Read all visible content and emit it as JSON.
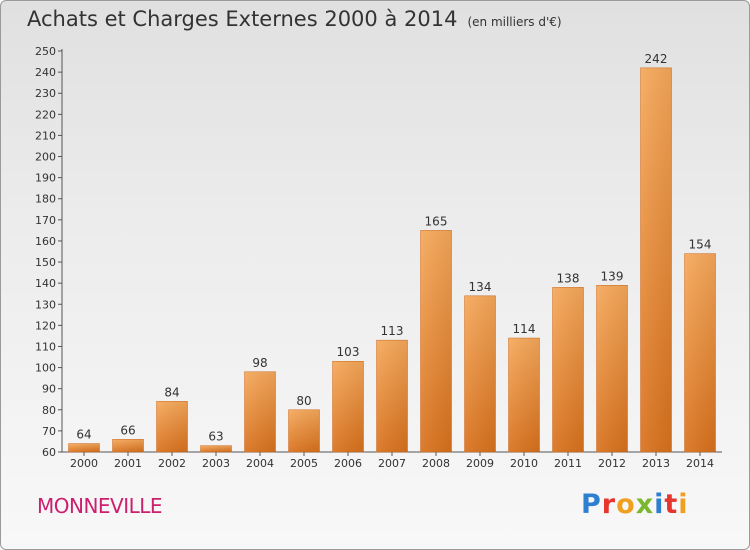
{
  "header": {
    "title": "Achats et Charges Externes 2000 à 2014",
    "unit": "(en milliers d'€)"
  },
  "footer": {
    "town": "MONNEVILLE",
    "logo_letters": [
      "P",
      "r",
      "o",
      "x",
      "i",
      "t",
      "i"
    ],
    "logo_colors": [
      "#2f7fd1",
      "#e5352e",
      "#f0a020",
      "#7ab82f",
      "#2f7fd1",
      "#e5352e",
      "#f0a020"
    ]
  },
  "chart_data": {
    "type": "bar",
    "title": "Achats et Charges Externes 2000 à 2014",
    "categories": [
      "2000",
      "2001",
      "2002",
      "2003",
      "2004",
      "2005",
      "2006",
      "2007",
      "2008",
      "2009",
      "2010",
      "2011",
      "2012",
      "2013",
      "2014"
    ],
    "values": [
      64,
      66,
      84,
      63,
      98,
      80,
      103,
      113,
      165,
      134,
      114,
      138,
      139,
      242,
      154
    ],
    "ylim": [
      60,
      250
    ],
    "ytick_step": 10,
    "xlabel": "",
    "ylabel": "",
    "grid": false,
    "bar_color": "#f0923a"
  }
}
